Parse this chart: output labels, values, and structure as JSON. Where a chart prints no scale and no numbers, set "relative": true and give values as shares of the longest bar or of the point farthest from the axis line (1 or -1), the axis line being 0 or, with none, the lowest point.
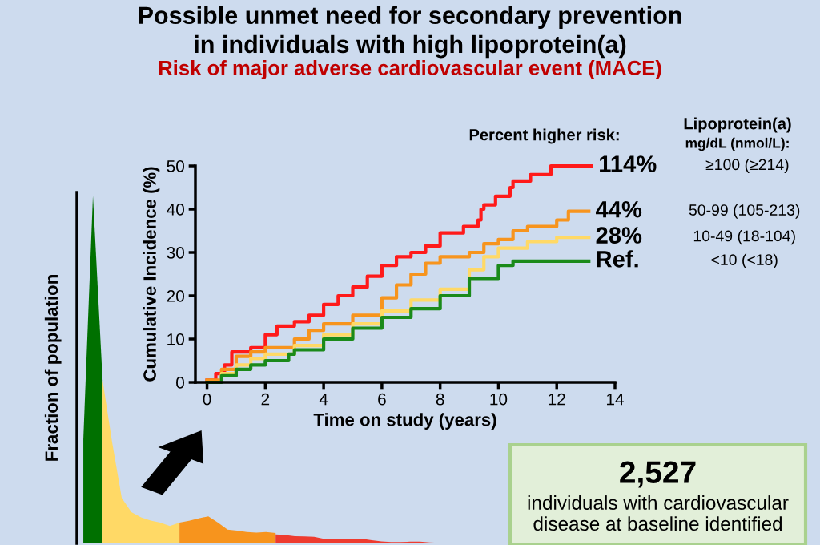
{
  "chart_data": [
    {
      "type": "step",
      "title": "Possible unmet need for secondary prevention\nin individuals with high lipoprotein(a)",
      "subtitle": "Risk of major adverse cardiovascular event (MACE)",
      "xlabel": "Time on study (years)",
      "ylabel": "Cumulative Incidence (%)",
      "xlim": [
        -0.4,
        14
      ],
      "ylim": [
        0,
        50
      ],
      "xticks": [
        0,
        2,
        4,
        6,
        8,
        10,
        12,
        14
      ],
      "yticks": [
        0,
        10,
        20,
        30,
        40,
        50
      ],
      "grid": false,
      "legend": false,
      "line_style": "solid",
      "series": [
        {
          "name": "≥100 (≥214)",
          "color": "#ff1a1a",
          "x": [
            0,
            0.3,
            0.6,
            0.85,
            1.5,
            2,
            2.4,
            3,
            3.5,
            4,
            4.5,
            5,
            5.5,
            6,
            6.5,
            7,
            7.5,
            8,
            8.8,
            9.3,
            9.4,
            9.5,
            9.9,
            10.4,
            10.5,
            11.1,
            11.8,
            13.2
          ],
          "values": [
            0.5,
            2,
            4,
            7,
            8,
            11,
            13,
            14,
            15.5,
            18,
            20,
            22,
            24.5,
            27,
            29,
            30,
            31.5,
            34.5,
            36,
            37.5,
            40,
            41,
            43,
            45,
            46.5,
            48,
            50,
            50
          ]
        },
        {
          "name": "50-99 (105-213)",
          "color": "#f7941d",
          "x": [
            0,
            0.5,
            1,
            1.5,
            2,
            3,
            3.5,
            4,
            5,
            6,
            6.5,
            7,
            7.5,
            8,
            9,
            9.5,
            10,
            10.5,
            11,
            12,
            12.4,
            13.1
          ],
          "values": [
            0.5,
            3,
            6,
            7,
            8,
            10,
            12,
            13.5,
            15.5,
            19.5,
            22.5,
            25,
            27.5,
            29,
            30,
            32,
            33,
            35,
            36,
            37.5,
            39.5,
            39.5
          ]
        },
        {
          "name": "10-49 (18-104)",
          "color": "#ffd966",
          "x": [
            0,
            0.5,
            1,
            1.5,
            2,
            3,
            4,
            5,
            6,
            7,
            8,
            9,
            9.5,
            10,
            11,
            12,
            13.1
          ],
          "values": [
            0,
            2,
            4,
            5.5,
            6.5,
            8.5,
            11,
            13.5,
            16.5,
            19,
            21.5,
            26,
            29,
            31,
            32.5,
            33.5,
            33.5
          ]
        },
        {
          "name": "<10 (<18)",
          "color": "#1a8a1a",
          "x": [
            0,
            0.5,
            1,
            1.5,
            2,
            2.8,
            3,
            4,
            5,
            6,
            7,
            8,
            9,
            10,
            10.5,
            12,
            13.1
          ],
          "values": [
            0,
            1.5,
            3,
            4,
            5,
            6.5,
            7.5,
            10,
            12.5,
            15,
            17,
            20,
            24,
            27,
            28,
            28,
            28
          ]
        }
      ],
      "annotations": [
        "Percent higher risk:",
        "Lipoprotein(a)",
        "mg/dL (nmol/L):",
        "114%",
        "44%",
        "28%",
        "Ref."
      ]
    },
    {
      "type": "area",
      "relative": true,
      "ylabel": "Fraction of population",
      "grid": false,
      "legend": false,
      "categories": [
        null,
        null,
        null,
        null,
        null,
        null,
        null,
        null,
        null,
        null,
        null,
        null,
        null,
        null,
        null,
        null,
        null,
        null,
        null,
        null,
        null,
        null,
        null,
        null,
        null,
        null,
        null,
        null,
        null,
        null,
        null,
        null,
        null,
        null,
        null,
        null,
        null,
        null,
        null,
        null
      ],
      "series": [
        {
          "color": "#007000",
          "values": [
            0.3,
            1.0,
            0.47,
            null,
            null,
            null,
            null,
            null,
            null,
            null,
            null,
            null,
            null,
            null,
            null,
            null,
            null,
            null,
            null,
            null,
            null,
            null,
            null,
            null,
            null,
            null,
            null,
            null,
            null,
            null,
            null,
            null,
            null,
            null,
            null,
            null,
            null,
            null,
            null,
            null
          ]
        },
        {
          "color": "#ffd966",
          "values": [
            null,
            null,
            0.47,
            0.29,
            0.13,
            0.09,
            0.075,
            0.066,
            0.06,
            0.05,
            0.06,
            null,
            null,
            null,
            null,
            null,
            null,
            null,
            null,
            null,
            null,
            null,
            null,
            null,
            null,
            null,
            null,
            null,
            null,
            null,
            null,
            null,
            null,
            null,
            null,
            null,
            null,
            null,
            null,
            null
          ]
        },
        {
          "color": "#f7941d",
          "values": [
            null,
            null,
            null,
            null,
            null,
            null,
            null,
            null,
            null,
            null,
            0.06,
            0.065,
            0.072,
            0.078,
            0.06,
            0.04,
            0.037,
            0.033,
            0.031,
            0.033,
            0.03,
            null,
            null,
            null,
            null,
            null,
            null,
            null,
            null,
            null,
            null,
            null,
            null,
            null,
            null,
            null,
            null,
            null,
            null,
            null
          ]
        },
        {
          "color": "#ee3b2f",
          "values": [
            null,
            null,
            null,
            null,
            null,
            null,
            null,
            null,
            null,
            null,
            null,
            null,
            null,
            null,
            null,
            null,
            null,
            null,
            null,
            null,
            0.026,
            0.024,
            0.021,
            0.02,
            0.019,
            0.013,
            0.013,
            0.014,
            0.014,
            0.013,
            0.009,
            0.006,
            0.004,
            0.004,
            0.005,
            0.005,
            0.003,
            0.002,
            0.001,
            0
          ]
        }
      ]
    },
    {
      "type": "other",
      "title": "2,527",
      "annotations": [
        "individuals with cardiovascular disease at baseline identified"
      ]
    }
  ]
}
